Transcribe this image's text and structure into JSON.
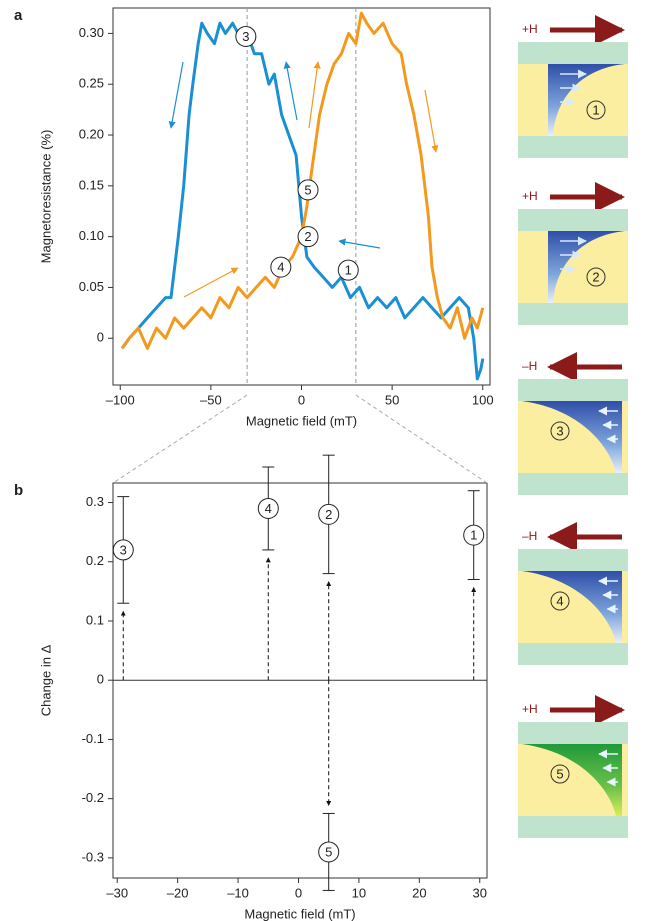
{
  "chart_data": [
    {
      "type": "line",
      "label": "a",
      "xlabel": "Magnetic field (mT)",
      "ylabel": "Magnetoresistance (%)",
      "xlim": [
        -104,
        104
      ],
      "ylim": [
        -0.046,
        0.325
      ],
      "xticks": [
        {
          "value": -100,
          "label": "–100"
        },
        {
          "value": -50,
          "label": "–50"
        },
        0,
        50,
        100
      ],
      "yticks": [
        0,
        0.05,
        {
          "value": 0.1,
          "label": "0.10"
        },
        0.15,
        {
          "value": 0.2,
          "label": "0.20"
        },
        0.25,
        {
          "value": 0.3,
          "label": "0.30"
        }
      ],
      "vlines": [
        -30,
        30
      ],
      "series": [
        {
          "color": "#1b8fd4",
          "x": [
            -99,
            -95,
            -90,
            -85,
            -80,
            -75,
            -72,
            -68,
            -65,
            -62,
            -60,
            -57,
            -55,
            -52,
            -48,
            -45,
            -42,
            -38,
            -35,
            -30,
            -26,
            -22,
            -18,
            -15,
            -11,
            -7,
            -3,
            0,
            3,
            7,
            12,
            17,
            22,
            27,
            32,
            37,
            42,
            47,
            52,
            57,
            62,
            67,
            72,
            77,
            82,
            87,
            92,
            95,
            97,
            99,
            100
          ],
          "values": [
            -0.01,
            0.0,
            0.01,
            0.02,
            0.03,
            0.04,
            0.04,
            0.1,
            0.15,
            0.22,
            0.25,
            0.29,
            0.31,
            0.3,
            0.29,
            0.31,
            0.3,
            0.31,
            0.3,
            0.3,
            0.28,
            0.28,
            0.25,
            0.26,
            0.22,
            0.2,
            0.18,
            0.12,
            0.08,
            0.07,
            0.06,
            0.05,
            0.06,
            0.04,
            0.05,
            0.03,
            0.04,
            0.03,
            0.04,
            0.02,
            0.03,
            0.04,
            0.03,
            0.02,
            0.03,
            0.04,
            0.03,
            0.0,
            -0.04,
            -0.03,
            -0.02
          ]
        },
        {
          "color": "#f39a1e",
          "x": [
            -99,
            -95,
            -90,
            -85,
            -80,
            -75,
            -70,
            -65,
            -60,
            -55,
            -50,
            -45,
            -40,
            -35,
            -30,
            -25,
            -20,
            -15,
            -10,
            -5,
            0,
            3,
            6,
            10,
            14,
            18,
            22,
            26,
            30,
            33,
            36,
            40,
            45,
            50,
            55,
            58,
            62,
            66,
            70,
            72,
            75,
            78,
            82,
            86,
            90,
            94,
            97,
            100
          ],
          "values": [
            -0.01,
            0.0,
            0.01,
            -0.01,
            0.01,
            0.0,
            0.02,
            0.01,
            0.02,
            0.03,
            0.02,
            0.04,
            0.03,
            0.05,
            0.04,
            0.05,
            0.06,
            0.05,
            0.07,
            0.08,
            0.1,
            0.13,
            0.17,
            0.22,
            0.25,
            0.27,
            0.28,
            0.3,
            0.29,
            0.32,
            0.31,
            0.3,
            0.31,
            0.29,
            0.28,
            0.25,
            0.22,
            0.18,
            0.12,
            0.07,
            0.04,
            0.02,
            0.01,
            0.03,
            0.0,
            0.02,
            0.01,
            0.03
          ]
        }
      ],
      "annotations": [
        {
          "label": "3",
          "x": -30.7,
          "y": 0.297
        },
        {
          "label": "5",
          "x": 3.6,
          "y": 0.146
        },
        {
          "label": "2",
          "x": 3.6,
          "y": 0.1
        },
        {
          "label": "4",
          "x": -11.4,
          "y": 0.07
        },
        {
          "label": "1",
          "x": 25.8,
          "y": 0.067
        }
      ]
    },
    {
      "type": "errorbar",
      "label": "b",
      "xlabel": "Magnetic field (mT)",
      "ylabel": "Change in Δ",
      "xlim": [
        -30.7,
        31.2
      ],
      "ylim": [
        -0.334,
        0.333
      ],
      "xticks": [
        {
          "value": -30,
          "label": "–30"
        },
        {
          "value": -20,
          "label": "–20"
        },
        {
          "value": -10,
          "label": "–10"
        },
        0,
        10,
        20,
        30
      ],
      "yticks": [
        0.3,
        0.2,
        0.1,
        0,
        -0.1,
        -0.2,
        -0.3
      ],
      "x": [
        -29,
        -5,
        5,
        29,
        5
      ],
      "values": [
        0.22,
        0.29,
        0.28,
        0.245,
        -0.29
      ],
      "errors": [
        0.09,
        0.07,
        0.1,
        0.075,
        0.065
      ],
      "point_labels": [
        "3",
        "4",
        "2",
        "1",
        "5"
      ]
    }
  ],
  "schematics": [
    {
      "field": "+H",
      "number": "1"
    },
    {
      "field": "+H",
      "number": "2"
    },
    {
      "field": "–H",
      "number": "3"
    },
    {
      "field": "–H",
      "number": "4"
    },
    {
      "field": "+H",
      "number": "5"
    }
  ]
}
